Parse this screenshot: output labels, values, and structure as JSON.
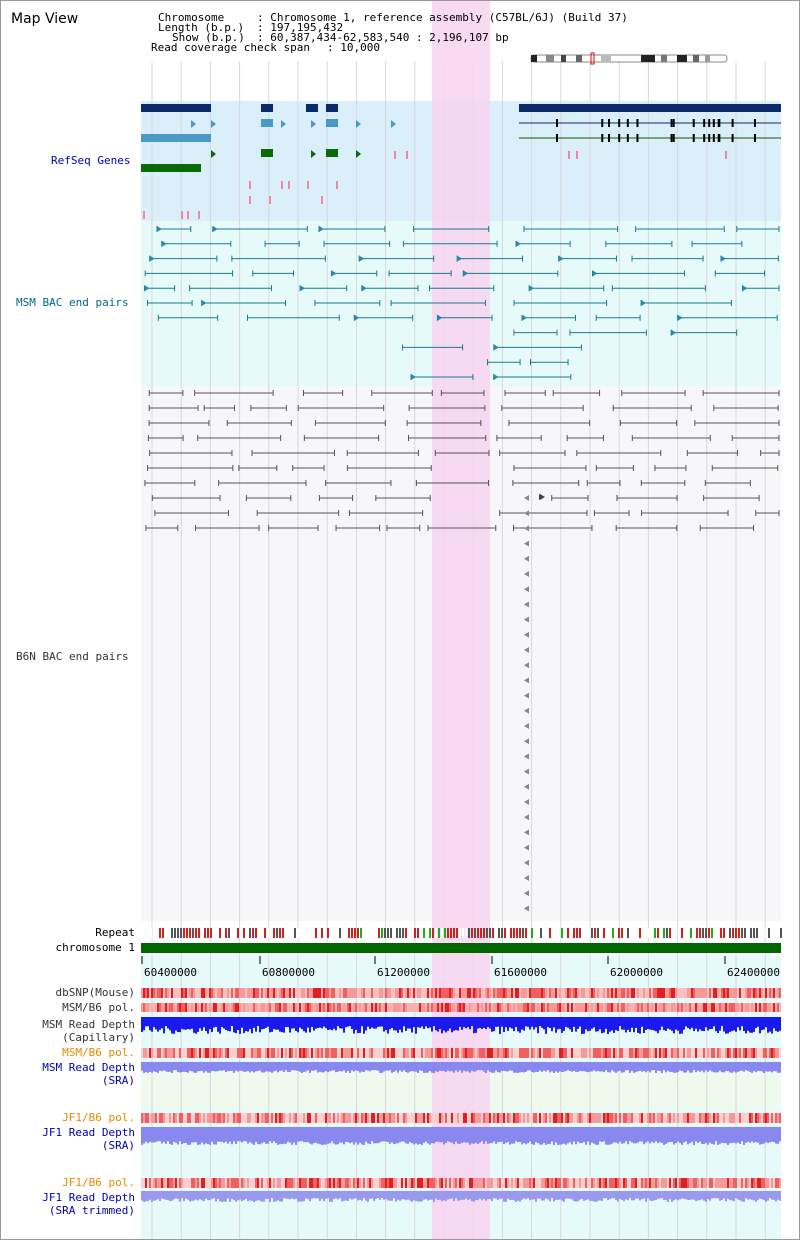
{
  "app": {
    "title": "Map View"
  },
  "header": {
    "chromosome_key": "Chromosome",
    "chromosome_val": ": Chromosome 1, reference assembly (C57BL/6J) (Build 37)",
    "length_key": "Length (b.p.)",
    "length_val": ": 197,195,432",
    "show_key": "Show (b.p.)",
    "show_val": ": 60,387,434-62,583,540 : 2,196,107 bp",
    "coverage_key": "Read coverage check span",
    "coverage_val": ": 10,000"
  },
  "tracks": {
    "refseq": {
      "label": "RefSeq Genes",
      "color": "#0000aa"
    },
    "msm_bac": {
      "label": "MSM BAC end pairs",
      "color": "#006688"
    },
    "b6n_bac": {
      "label": "B6N BAC end pairs",
      "color": "#333333"
    },
    "repeat": {
      "label": "Repeat"
    },
    "chromosome": {
      "label": "chromosome 1"
    },
    "dbsnp": {
      "label": "dbSNP(Mouse)"
    },
    "msm_b6_pol_1": {
      "label": "MSM/B6 pol."
    },
    "msm_depth_cap_1": {
      "label": "MSM Read Depth"
    },
    "msm_depth_cap_2": {
      "label": "(Capillary)"
    },
    "msm_b6_pol_2": {
      "label": "MSM/B6 pol.",
      "color": "#e68a00"
    },
    "msm_depth_sra_1": {
      "label": "MSM Read Depth",
      "color": "#0000aa"
    },
    "msm_depth_sra_2": {
      "label": "(SRA)",
      "color": "#0000aa"
    },
    "jf1_b6_pol_1": {
      "label": "JF1/B6 pol.",
      "color": "#e68a00"
    },
    "jf1_depth_sra_1": {
      "label": "JF1 Read Depth",
      "color": "#0000aa"
    },
    "jf1_depth_sra_2": {
      "label": "(SRA)",
      "color": "#0000aa"
    },
    "jf1_b6_pol_2": {
      "label": "JF1/B6 pol.",
      "color": "#e68a00"
    },
    "jf1_depth_trim_1": {
      "label": "JF1 Read Depth",
      "color": "#0000aa"
    },
    "jf1_depth_trim_2": {
      "label": "(SRA trimmed)",
      "color": "#0000aa"
    }
  },
  "axis": {
    "ticks": [
      "60400000",
      "60800000",
      "61200000",
      "61600000",
      "62000000",
      "62400000"
    ]
  },
  "colors": {
    "highlight": "#f7d4ef",
    "refseq_bg": "#dbeffa",
    "msm_bg": "#e6fafa",
    "b6n_bg": "#f7f7fa",
    "chromosome_bar": "#006600",
    "depth_capillary": "#1a1aee",
    "depth_sra": "#8888ee",
    "snp_red": "#e03030"
  }
}
